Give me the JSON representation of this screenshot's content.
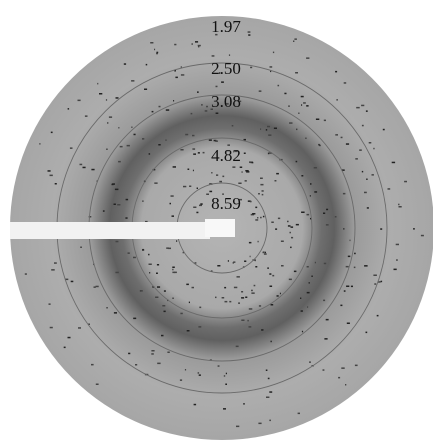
{
  "rings": [
    {
      "label": "1.97"
    },
    {
      "label": "2.50"
    },
    {
      "label": "3.08"
    },
    {
      "label": "4.82"
    },
    {
      "label": "8.59"
    }
  ]
}
